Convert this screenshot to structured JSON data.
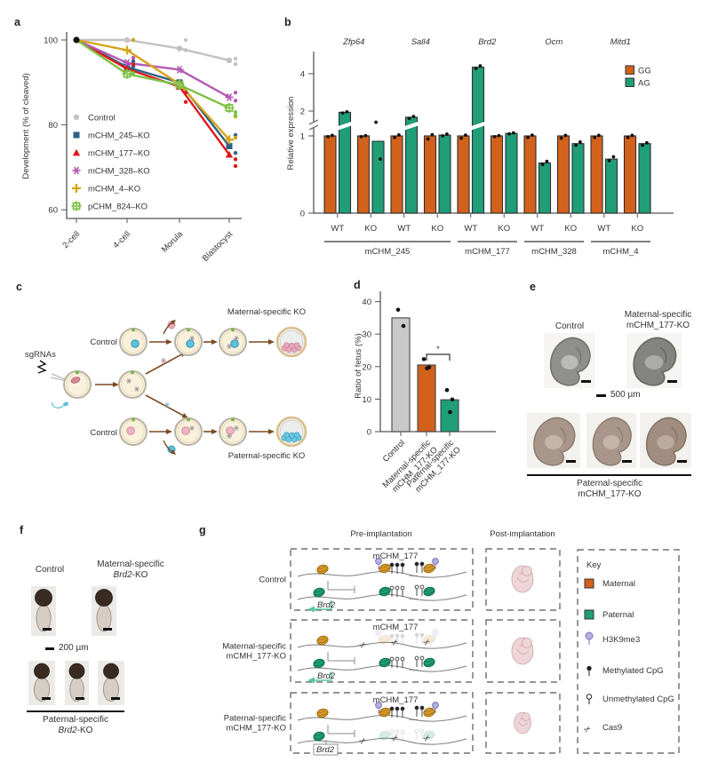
{
  "panels": {
    "a": {
      "label": "a"
    },
    "b": {
      "label": "b"
    },
    "c": {
      "label": "c",
      "sgrnas": "sgRNAs",
      "control_top": "Control",
      "control_bottom": "Control",
      "maternal": "Maternal-specific KO",
      "paternal": "Paternal-specific KO"
    },
    "d": {
      "label": "d"
    },
    "e": {
      "label": "e",
      "control": "Control",
      "maternal": "Maternal-specific\nmCHM_177-KO",
      "scale": "500 µm",
      "paternal": "Paternal-specific\nmCHM_177-KO"
    },
    "f": {
      "label": "f",
      "control": "Control",
      "maternal_line1": "Maternal-specific",
      "gene": "Brd2",
      "ko_suffix": "-KO",
      "scale": "200 µm",
      "paternal_line1": "Paternal-specific"
    },
    "g": {
      "label": "g",
      "pre": "Pre-implantation",
      "post": "Post-implantation",
      "rows": [
        "Control",
        "Maternal-specific\nmCMH_177-KO",
        "Paternal-specific\nmCHM_177-KO"
      ],
      "locus": "mCHM_177",
      "gene": "Brd2",
      "key_title": "Key",
      "key_items": [
        "Maternal",
        "Paternal",
        "H3K9me3",
        "Methylated CpG",
        "Unmethylated CpG",
        "Cas9"
      ]
    }
  },
  "chart_data": [
    {
      "id": "a",
      "type": "line",
      "ylabel": "Development (% of cleaved)",
      "categories": [
        "2-cell",
        "4-cell",
        "Morula",
        "Blastocyst"
      ],
      "yticks": [
        60,
        80,
        100
      ],
      "ylim": [
        58,
        102
      ],
      "legend_position": "inside-left",
      "grid": false,
      "series": [
        {
          "name": "Control",
          "color": "#c2c2c2",
          "marker": "circle",
          "values": [
            100,
            100,
            98,
            95.2
          ]
        },
        {
          "name": "mCHM_245–KO",
          "color": "#2b6285",
          "marker": "square",
          "values": [
            100,
            93.6,
            90,
            75
          ]
        },
        {
          "name": "mCHM_177–KO",
          "color": "#e0191c",
          "marker": "triangle",
          "values": [
            100,
            93.2,
            89,
            73
          ]
        },
        {
          "name": "mCHM_328–KO",
          "color": "#b55ab5",
          "marker": "asterisk",
          "values": [
            100,
            94.6,
            93,
            86.5
          ]
        },
        {
          "name": "mCHM_4–KO",
          "color": "#d5a51b",
          "marker": "plus",
          "values": [
            100,
            97.6,
            89.6,
            76.5
          ]
        },
        {
          "name": "pCHM_824–KO",
          "color": "#7cc243",
          "marker": "boxplus",
          "values": [
            100,
            92,
            89.4,
            84
          ]
        }
      ],
      "scatter": [
        {
          "series": 0,
          "x": 1,
          "y": 100
        },
        {
          "series": 0,
          "x": 2,
          "y": 100
        },
        {
          "series": 0,
          "x": 2,
          "y": 97.6
        },
        {
          "series": 0,
          "x": 3,
          "y": 95.6
        },
        {
          "series": 0,
          "x": 3,
          "y": 94.3
        },
        {
          "series": 1,
          "x": 1,
          "y": 95
        },
        {
          "series": 1,
          "x": 1,
          "y": 93.8
        },
        {
          "series": 1,
          "x": 3,
          "y": 77.6
        },
        {
          "series": 1,
          "x": 3,
          "y": 73.4
        },
        {
          "series": 2,
          "x": 1,
          "y": 94.2
        },
        {
          "series": 2,
          "x": 2,
          "y": 87.6
        },
        {
          "series": 2,
          "x": 2,
          "y": 85.4
        },
        {
          "series": 2,
          "x": 3,
          "y": 71.9
        },
        {
          "series": 2,
          "x": 3,
          "y": 70.3
        },
        {
          "series": 3,
          "x": 1,
          "y": 95.8
        },
        {
          "series": 3,
          "x": 3,
          "y": 87.6
        },
        {
          "series": 3,
          "x": 3,
          "y": 85.7
        },
        {
          "series": 4,
          "x": 1,
          "y": 100
        },
        {
          "series": 4,
          "x": 3,
          "y": 82
        },
        {
          "series": 4,
          "x": 3,
          "y": 77
        },
        {
          "series": 5,
          "x": 1,
          "y": 92.2
        },
        {
          "series": 5,
          "x": 3,
          "y": 83
        },
        {
          "series": 5,
          "x": 3,
          "y": 82.2
        }
      ]
    },
    {
      "id": "b",
      "type": "bar",
      "ylabel": "Relative expression",
      "yticks": [
        0,
        1,
        2,
        4
      ],
      "axis_break": true,
      "colors": {
        "gg": "#d2611c",
        "ag": "#1f9e78"
      },
      "legend": [
        {
          "label": "GG",
          "color": "#d2611c"
        },
        {
          "label": "AG",
          "color": "#1f9e78"
        }
      ],
      "genes": [
        "Zfp64",
        "Sall4",
        "Brd2",
        "Ocm",
        "Mitd1"
      ],
      "pairs": [
        {
          "gene": "Zfp64",
          "cond": "WT",
          "gg": 1.0,
          "ag": 1.95,
          "gg_dots": [
            0.99,
            1.02
          ],
          "ag_dots": [
            1.92,
            1.97
          ]
        },
        {
          "gene": "Zfp64",
          "cond": "KO",
          "gg": 1.0,
          "ag": 0.93,
          "gg_dots": [
            0.99,
            1.01
          ],
          "ag_dots": [
            1.55,
            0.7
          ]
        },
        {
          "gene": "Sall4",
          "cond": "WT",
          "gg": 1.0,
          "ag": 1.75,
          "gg_dots": [
            0.98,
            1.04
          ],
          "ag_dots": [
            1.7,
            1.78
          ]
        },
        {
          "gene": "Sall4",
          "cond": "KO",
          "gg": 1.0,
          "ag": 1.03,
          "gg_dots": [
            0.96,
            1.05
          ],
          "ag_dots": [
            1.0,
            1.07
          ]
        },
        {
          "gene": "Brd2",
          "cond": "WT",
          "gg": 1.0,
          "ag": 4.35,
          "gg_dots": [
            0.97,
            1.03
          ],
          "ag_dots": [
            4.28,
            4.42
          ]
        },
        {
          "gene": "Brd2",
          "cond": "KO",
          "gg": 1.0,
          "ag": 1.1,
          "gg_dots": [
            0.99,
            1.01
          ],
          "ag_dots": [
            1.08,
            1.12
          ]
        },
        {
          "gene": "Ocm",
          "cond": "WT",
          "gg": 1.0,
          "ag": 0.65,
          "gg_dots": [
            0.98,
            1.03
          ],
          "ag_dots": [
            0.63,
            0.67
          ]
        },
        {
          "gene": "Ocm",
          "cond": "KO",
          "gg": 1.0,
          "ag": 0.9,
          "gg_dots": [
            0.97,
            1.02
          ],
          "ag_dots": [
            0.88,
            0.92
          ]
        },
        {
          "gene": "Mitd1",
          "cond": "WT",
          "gg": 1.0,
          "ag": 0.7,
          "gg_dots": [
            0.98,
            1.02
          ],
          "ag_dots": [
            0.68,
            0.73
          ]
        },
        {
          "gene": "Mitd1",
          "cond": "KO",
          "gg": 1.0,
          "ag": 0.9,
          "gg_dots": [
            0.98,
            1.02
          ],
          "ag_dots": [
            0.88,
            0.91
          ]
        }
      ],
      "groups": [
        {
          "label": "mCHM_245",
          "pairs": [
            0,
            3
          ]
        },
        {
          "label": "mCHM_177",
          "pairs": [
            4,
            5
          ]
        },
        {
          "label": "mCHM_328",
          "pairs": [
            6,
            7
          ]
        },
        {
          "label": "mCHM_4",
          "pairs": [
            8,
            9
          ]
        }
      ]
    },
    {
      "id": "d",
      "type": "bar",
      "ylabel": "Ratio of fetus (%)",
      "yticks": [
        0,
        10,
        20,
        30,
        40
      ],
      "ylim": [
        0,
        43
      ],
      "bars": [
        {
          "label": "Control",
          "color": "#c9c9c9",
          "value": 35,
          "dots": [
            37.5,
            32.5
          ]
        },
        {
          "label": "Maternal-specific\nmCHM_177-KO",
          "color": "#d2611c",
          "value": 20.5,
          "dots": [
            22.3,
            19.8,
            19.5
          ]
        },
        {
          "label": "Paternal-specific\nmCHM_177-KO",
          "color": "#1f9e78",
          "value": 9.8,
          "dots": [
            12.8,
            9.9,
            6.0
          ]
        }
      ],
      "significance": {
        "between": [
          1,
          2
        ],
        "label": "*"
      }
    }
  ],
  "colors": {
    "gg_orange": "#d2611c",
    "ag_green": "#1f9e78",
    "nucleosome_maternal": "#d79a2b",
    "nucleosome_paternal": "#1f9e78",
    "h3k9me3_purple": "#b6b0de",
    "embryo_pink": "#eed6d8",
    "arrow_brown": "#7a4a21",
    "pink_cells": "#e8a8b8",
    "cyan_cells": "#5fc2dc"
  }
}
